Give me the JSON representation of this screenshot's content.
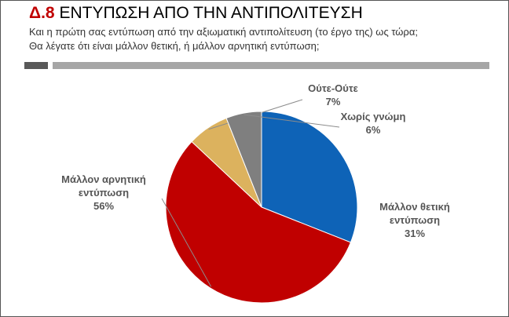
{
  "header": {
    "code": "Δ.8",
    "title": "ΕΝΤΥΠΩΣΗ ΑΠΟ ΤΗΝ ΑΝΤΙΠΟΛΙΤΕΥΣΗ",
    "question_line1": "Και η πρώτη σας εντύπωση από την αξιωματική αντιπολίτευση (το έργο της) ως τώρα;",
    "question_line2": "Θα λέγατε ότι είναι μάλλον θετική, ή μάλλον αρνητική εντύπωση;"
  },
  "chart_data": {
    "type": "pie",
    "start_angle_deg": 0,
    "direction": "clockwise",
    "slices": [
      {
        "key": "positive",
        "label_lines": [
          "Μάλλον θετική",
          "εντύπωση"
        ],
        "value": 31,
        "pct_label": "31%",
        "color": "#0e63b7"
      },
      {
        "key": "negative",
        "label_lines": [
          "Μάλλον αρνητική",
          "εντύπωση"
        ],
        "value": 56,
        "pct_label": "56%",
        "color": "#c00000"
      },
      {
        "key": "neither",
        "label_lines": [
          "Ούτε-Ούτε"
        ],
        "value": 7,
        "pct_label": "7%",
        "color": "#dcb25e"
      },
      {
        "key": "no-opinion",
        "label_lines": [
          "Χωρίς γνώμη"
        ],
        "value": 6,
        "pct_label": "6%",
        "color": "#7f7f7f"
      }
    ]
  }
}
